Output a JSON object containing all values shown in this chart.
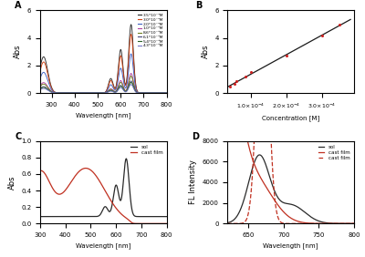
{
  "panel_A": {
    "label": "A",
    "xlabel": "Wavelength [nm]",
    "ylabel": "Abs",
    "xlim": [
      250,
      800
    ],
    "ylim": [
      0.0,
      6.0
    ],
    "yticks": [
      0.0,
      2.0,
      4.0,
      6.0
    ],
    "legend_labels": [
      "3.5*10⁻⁴M",
      "3.0*10⁻⁴M",
      "2.0*10⁻⁴M",
      "1.0*10⁻⁴M",
      "8.6*10⁻⁵M",
      "6.1*10⁻⁵M",
      "5.4*10⁻⁵M",
      "4.3*10⁻⁵M"
    ],
    "legend_colors": [
      "#2a2a2a",
      "#d04010",
      "#4060c0",
      "#b040a0",
      "#708020",
      "#484878",
      "#286028",
      "#7878c8"
    ],
    "scales": [
      3.5,
      3.0,
      2.0,
      1.0,
      0.86,
      0.61,
      0.54,
      0.43
    ]
  },
  "panel_B": {
    "label": "B",
    "xlabel": "Concentration [M]",
    "ylabel": "Abs",
    "xlim": [
      3.5e-05,
      0.00039
    ],
    "ylim": [
      0.0,
      6.0
    ],
    "yticks": [
      0.0,
      2.0,
      4.0,
      6.0
    ],
    "conc": [
      4.3e-05,
      5.4e-05,
      6.1e-05,
      8.6e-05,
      0.0001,
      0.0002,
      0.0003,
      0.00035
    ],
    "abs_vals": [
      0.45,
      0.65,
      0.85,
      1.2,
      1.5,
      2.7,
      4.15,
      4.95
    ],
    "line_color": "#1a1a1a",
    "dot_color": "#cc2020"
  },
  "panel_C": {
    "label": "C",
    "xlabel": "Wavelength [nm]",
    "ylabel": "Abs",
    "xlim": [
      300,
      800
    ],
    "ylim": [
      0.0,
      1.0
    ],
    "yticks": [
      0.0,
      0.2,
      0.4,
      0.6,
      0.8,
      1.0
    ],
    "sol_color": "#2a2a2a",
    "film_color": "#c03020",
    "legend_labels": [
      "sol",
      "cast film"
    ]
  },
  "panel_D": {
    "label": "D",
    "xlabel": "Wavelength [nm]",
    "ylabel": "FL Intensity",
    "xlim": [
      620,
      800
    ],
    "ylim": [
      0,
      8000
    ],
    "yticks": [
      0,
      2000,
      4000,
      6000,
      8000
    ],
    "sol_color": "#2a2a2a",
    "film_solid_color": "#c03020",
    "film_dashed_color": "#c03020",
    "legend_labels": [
      "sol",
      "cast film",
      "cast film"
    ]
  }
}
